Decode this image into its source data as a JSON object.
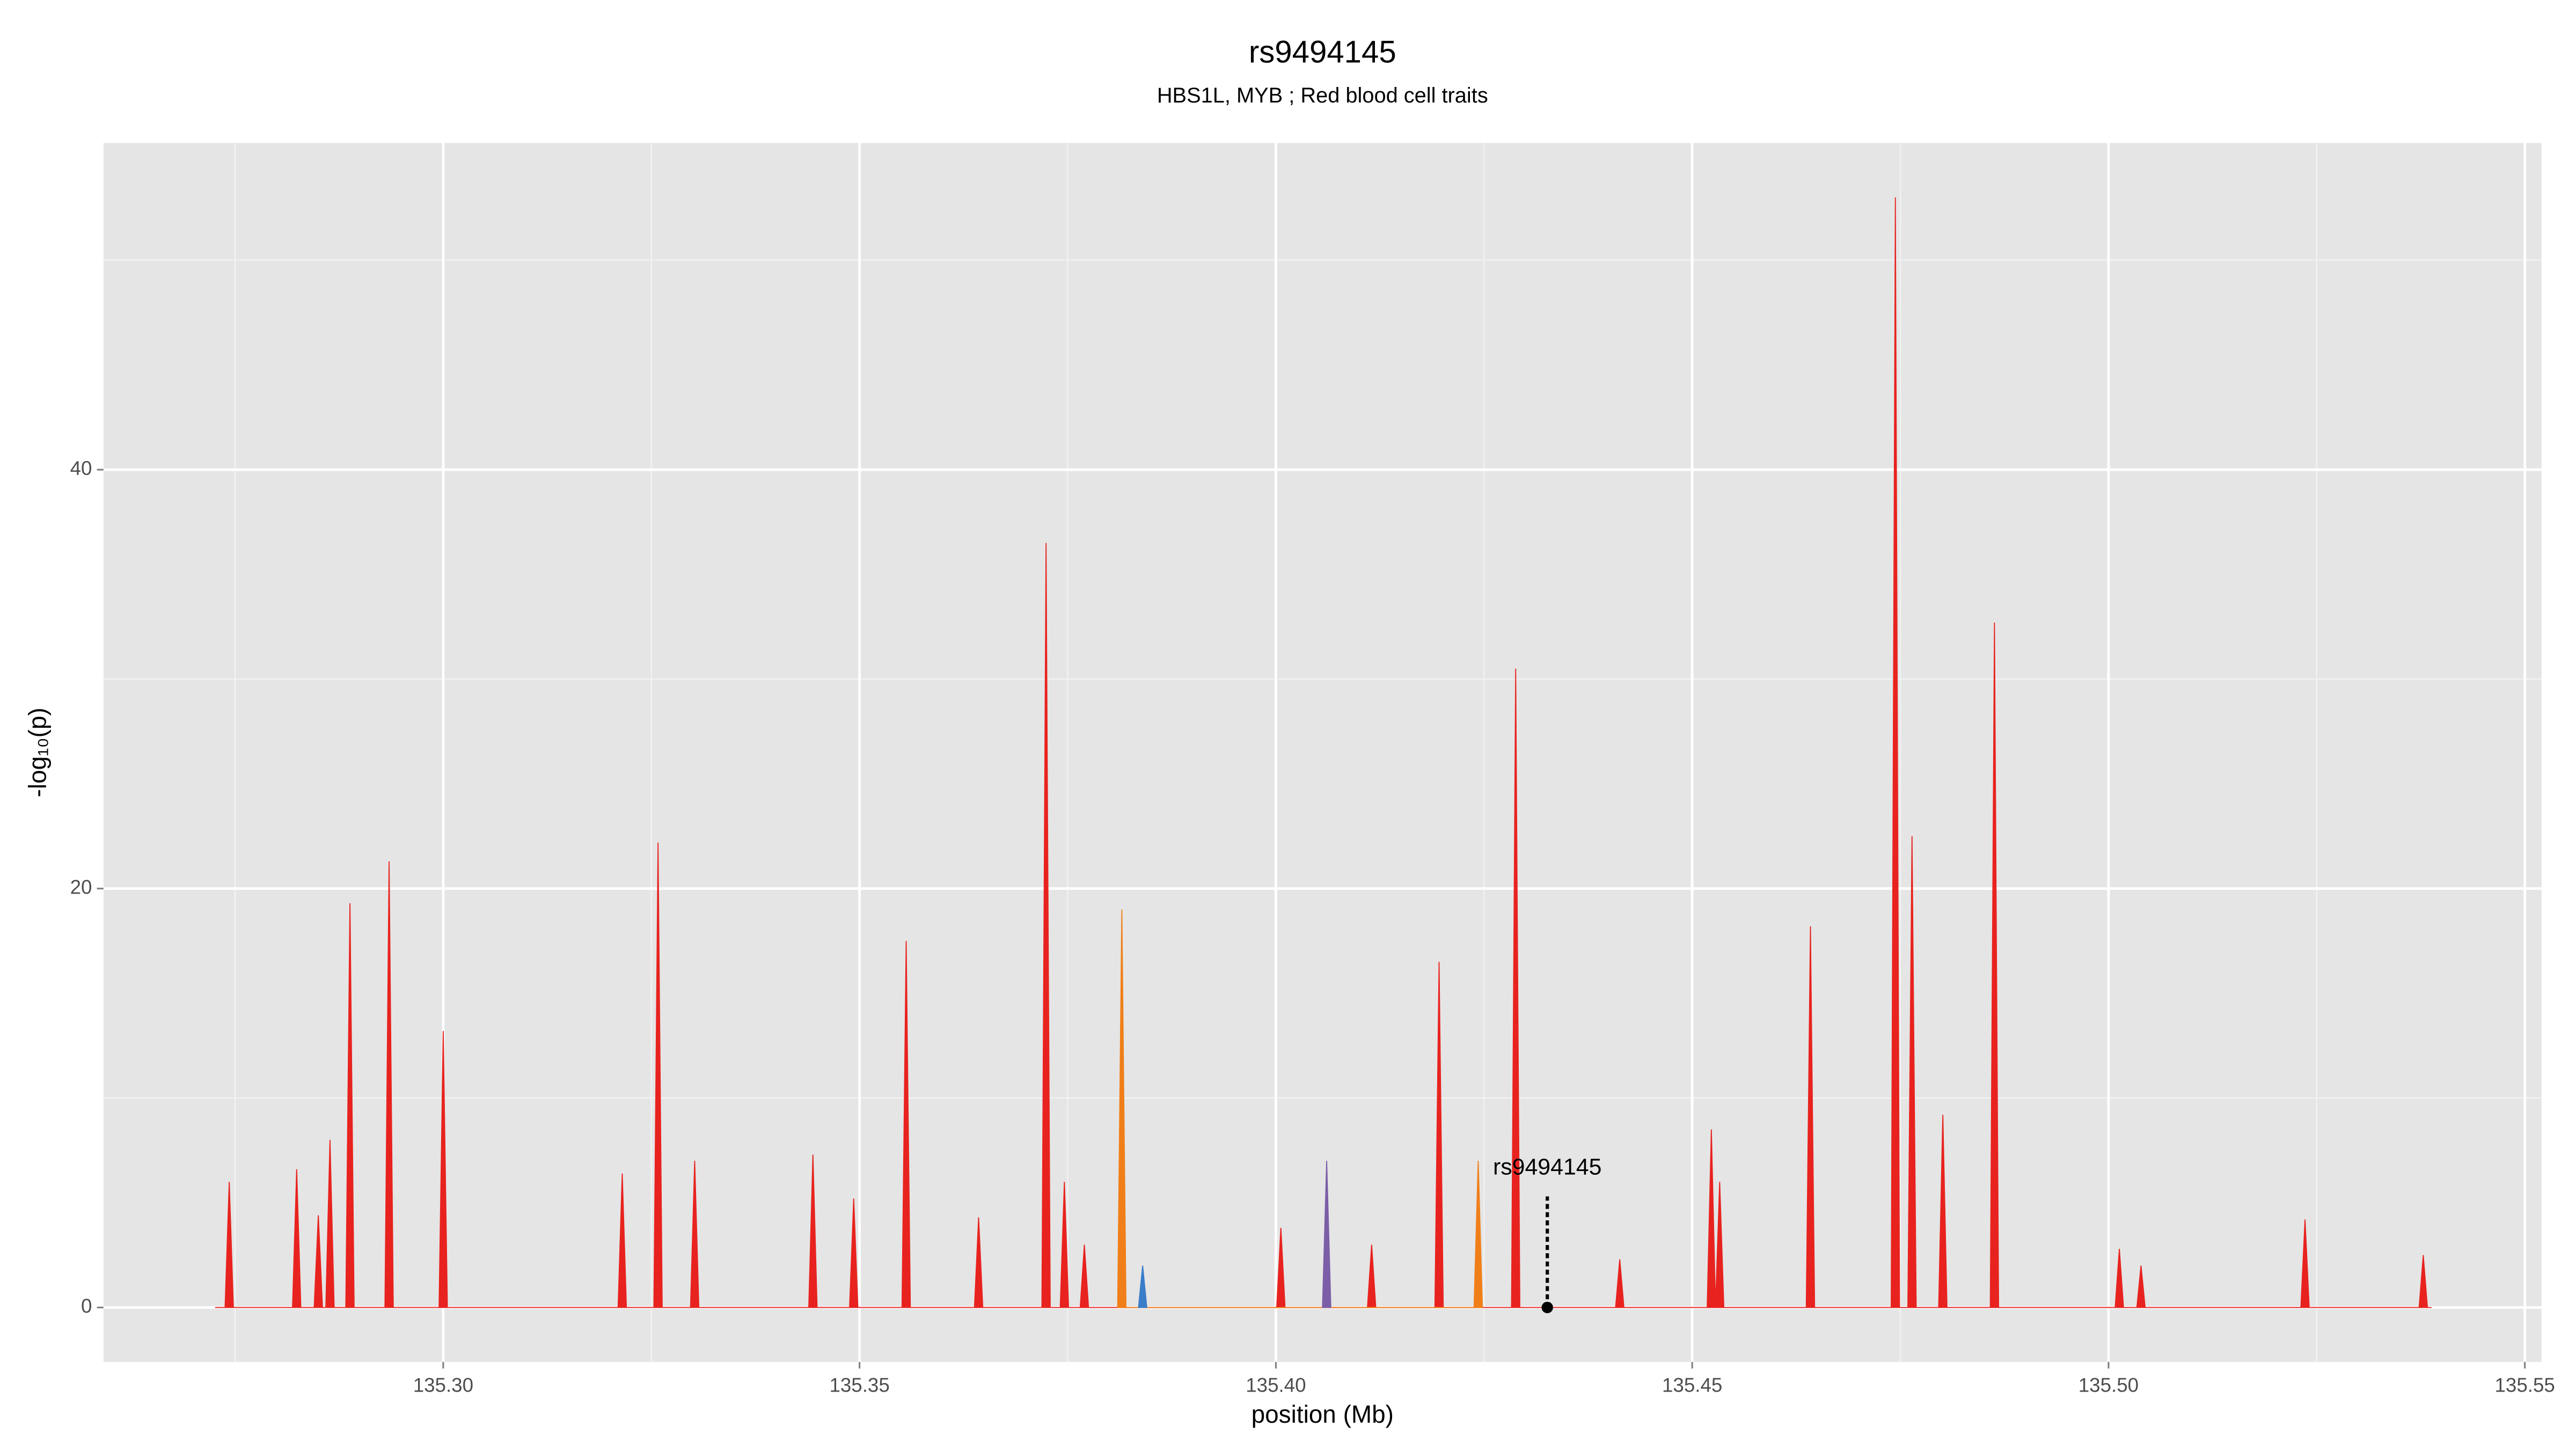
{
  "chart_data": {
    "type": "area",
    "title": "rs9494145",
    "subtitle": "HBS1L, MYB ; Red blood cell traits",
    "x_label": "position (Mb)",
    "y_label": "-log₁₀(p)",
    "xlim": [
      135.2592,
      135.552
    ],
    "ylim": [
      -2.6,
      55.6
    ],
    "xticks": [
      {
        "value": 135.3,
        "label": "135.30"
      },
      {
        "value": 135.35,
        "label": "135.35"
      },
      {
        "value": 135.4,
        "label": "135.40"
      },
      {
        "value": 135.45,
        "label": "135.45"
      },
      {
        "value": 135.5,
        "label": "135.50"
      },
      {
        "value": 135.55,
        "label": "135.55"
      }
    ],
    "x_minor_grid": [
      135.275,
      135.325,
      135.375,
      135.425,
      135.475,
      135.525
    ],
    "yticks": [
      0,
      20,
      40
    ],
    "y_minor_grid": [
      10,
      30,
      50
    ],
    "grid": true,
    "series": [
      {
        "color": "#e8231f",
        "x": [
          135.2726,
          135.2738,
          135.2743,
          135.2748,
          135.2819,
          135.2824,
          135.2829,
          135.2845,
          135.285,
          135.2855,
          135.2859,
          135.2864,
          135.2869,
          135.2883,
          135.2888,
          135.2893,
          135.293,
          135.2935,
          135.294,
          135.2995,
          135.3,
          135.3005,
          135.321,
          135.3215,
          135.322,
          135.3253,
          135.3258,
          135.3263,
          135.3297,
          135.3302,
          135.3307,
          135.3439,
          135.3444,
          135.3449,
          135.3488,
          135.3493,
          135.3498,
          135.3551,
          135.3556,
          135.3561,
          135.3638,
          135.3643,
          135.3648,
          135.3719,
          135.3724,
          135.3729,
          135.3741,
          135.3746,
          135.3751,
          135.3765,
          135.377,
          135.3775,
          135.4001,
          135.4006,
          135.4011,
          135.411,
          135.4115,
          135.412,
          135.4191,
          135.4196,
          135.4201,
          135.4283,
          135.4288,
          135.4293,
          135.4408,
          135.4413,
          135.4418,
          135.4518,
          135.4523,
          135.4528,
          135.4528,
          135.4533,
          135.4538,
          135.4637,
          135.4642,
          135.4647,
          135.4739,
          135.4744,
          135.4749,
          135.4759,
          135.4764,
          135.4769,
          135.4796,
          135.4801,
          135.4806,
          135.4858,
          135.4863,
          135.4868,
          135.5008,
          135.5013,
          135.5018,
          135.5034,
          135.5039,
          135.5044,
          135.5231,
          135.5236,
          135.5241,
          135.5373,
          135.5378,
          135.5383,
          135.5388
        ],
        "values": [
          0,
          0,
          6,
          0,
          0,
          6.6,
          0,
          0,
          4.4,
          0,
          0,
          8,
          0,
          0,
          19.3,
          0,
          0,
          21.3,
          0,
          0,
          13.2,
          0,
          0,
          6.4,
          0,
          0,
          22.2,
          0,
          0,
          7,
          0,
          0,
          7.3,
          0,
          0,
          5.2,
          0,
          0,
          17.5,
          0,
          0,
          4.3,
          0,
          0,
          36.5,
          0,
          0,
          6,
          0,
          0,
          3,
          0,
          0,
          3.8,
          0,
          0,
          3,
          0,
          0,
          16.5,
          0,
          0,
          30.5,
          0,
          0,
          2.3,
          0,
          0,
          8.5,
          0,
          0,
          6,
          0,
          0,
          18.2,
          0,
          0,
          53,
          0,
          0,
          22.5,
          0,
          0,
          9.2,
          0,
          0,
          32.7,
          0,
          0,
          2.8,
          0,
          0,
          2,
          0,
          0,
          4.2,
          0,
          0,
          2.5,
          0,
          0
        ]
      },
      {
        "color": "#f07f19",
        "x": [
          135.381,
          135.3815,
          135.382,
          135.4238,
          135.4243,
          135.4248
        ],
        "values": [
          0,
          19,
          0,
          0,
          7,
          0
        ]
      },
      {
        "color": "#7b5ea7",
        "x": [
          135.4056,
          135.4061,
          135.4066
        ],
        "values": [
          0,
          7,
          0
        ]
      },
      {
        "color": "#3a7dc9",
        "x": [
          135.3835,
          135.384,
          135.3845
        ],
        "values": [
          0,
          2,
          0
        ]
      }
    ],
    "annotation": {
      "label": "rs9494145",
      "x": 135.4326,
      "y": 5.3
    }
  }
}
